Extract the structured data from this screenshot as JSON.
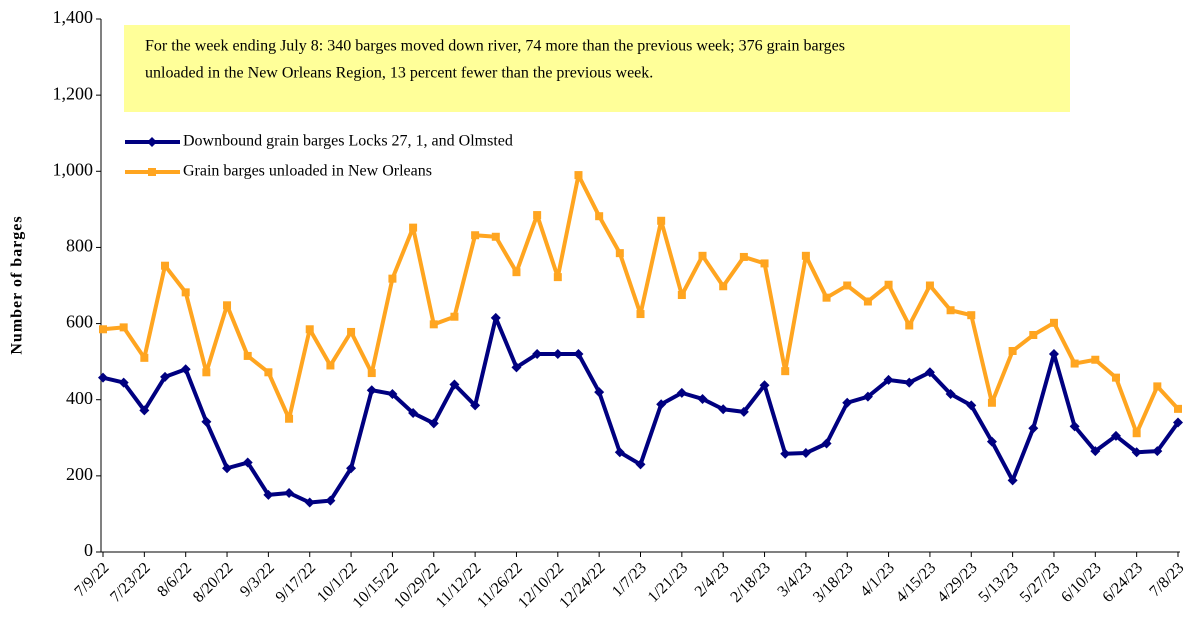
{
  "chart_data": {
    "type": "line",
    "ylabel": "Number of barges",
    "annotation": [
      "For the week ending July 8: 340 barges moved down river, 74 more than the previous week; 376 grain barges",
      "unloaded in the New Orleans Region,  13 percent fewer than the previous week."
    ],
    "categories": [
      "7/9/22",
      null,
      "7/23/22",
      null,
      "8/6/22",
      null,
      "8/20/22",
      null,
      "9/3/22",
      null,
      "9/17/22",
      null,
      "10/1/22",
      null,
      "10/15/22",
      null,
      "10/29/22",
      null,
      "11/12/22",
      null,
      "11/26/22",
      null,
      "12/10/22",
      null,
      "12/24/22",
      null,
      "1/7/23",
      null,
      "1/21/23",
      null,
      "2/4/23",
      null,
      "2/18/23",
      null,
      "3/4/23",
      null,
      "3/18/23",
      null,
      "4/1/23",
      null,
      "4/15/23",
      null,
      "4/29/23",
      null,
      "5/13/23",
      null,
      "5/27/23",
      null,
      "6/10/23",
      null,
      "6/24/23",
      null,
      "7/8/23"
    ],
    "series": [
      {
        "name": "Downbound grain barges Locks 27, 1, and Olmsted",
        "color": "#000080",
        "marker": "diamond",
        "values": [
          458,
          445,
          372,
          460,
          480,
          342,
          220,
          235,
          150,
          155,
          130,
          135,
          220,
          425,
          415,
          365,
          338,
          440,
          385,
          615,
          485,
          520,
          520,
          520,
          420,
          262,
          230,
          388,
          418,
          402,
          375,
          368,
          438,
          258,
          260,
          285,
          392,
          408,
          452,
          445,
          472,
          415,
          385,
          290,
          188,
          325,
          520,
          330,
          265,
          305,
          262,
          265,
          340
        ]
      },
      {
        "name": "Grain barges unloaded in New Orleans",
        "color": "#ffa520",
        "marker": "square",
        "values": [
          585,
          590,
          510,
          752,
          682,
          472,
          648,
          515,
          472,
          350,
          585,
          490,
          578,
          470,
          718,
          852,
          598,
          618,
          832,
          828,
          735,
          885,
          722,
          990,
          882,
          785,
          625,
          870,
          675,
          778,
          698,
          775,
          758,
          475,
          778,
          668,
          700,
          658,
          702,
          595,
          700,
          635,
          622,
          392,
          528,
          570,
          602,
          495,
          505,
          458,
          312,
          435,
          376
        ]
      }
    ],
    "ylim": [
      0,
      1400
    ],
    "yticks": [
      0,
      200,
      400,
      600,
      800,
      {
        "value": 1000,
        "label": "1,000"
      },
      {
        "value": 1200,
        "label": "1,200"
      },
      {
        "value": 1400,
        "label": "1,400"
      }
    ]
  }
}
